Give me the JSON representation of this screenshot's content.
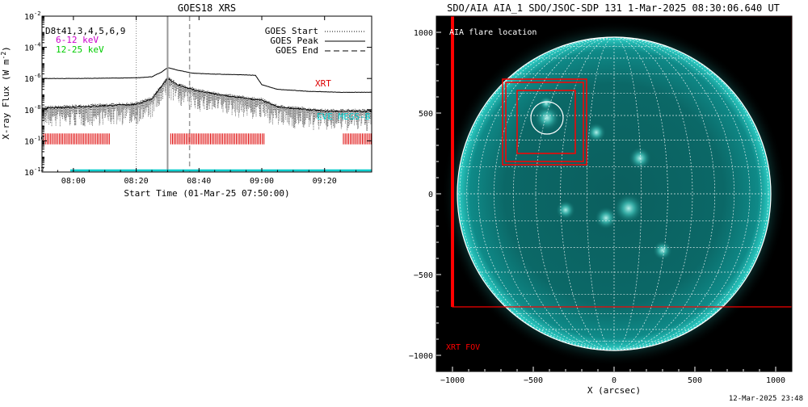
{
  "chart_data": [
    {
      "type": "line",
      "title": "GOES18 XRS",
      "xlabel": "Start Time (01-Mar-25 07:50:00)",
      "ylabel": "X-ray Flux (W m",
      "ylabel_sup": "-2",
      "ylabel_close": ")",
      "y_scale": "log",
      "xlim": [
        "07:50",
        "09:35"
      ],
      "ylim": [
        1e-12,
        0.01
      ],
      "x_ticks": [
        "08:00",
        "08:20",
        "08:40",
        "09:00",
        "09:20"
      ],
      "y_ticks": [
        {
          "exp": -12,
          "label": "10",
          "sup": "-12"
        },
        {
          "exp": -10,
          "label": "10",
          "sup": "-10"
        },
        {
          "exp": -8,
          "label": "10",
          "sup": "-8"
        },
        {
          "exp": -6,
          "label": "10",
          "sup": "-6"
        },
        {
          "exp": -4,
          "label": "10",
          "sup": "-4"
        },
        {
          "exp": -2,
          "label": "10",
          "sup": "-2"
        }
      ],
      "left_legend": [
        {
          "text": "D8t41,3,4,5,6,9",
          "color": "#000000"
        },
        {
          "text": "6-12 keV",
          "color": "#cc00cc"
        },
        {
          "text": "12-25 keV",
          "color": "#00cc00"
        }
      ],
      "right_legend": [
        {
          "text": "GOES Start",
          "style": "dotted"
        },
        {
          "text": "GOES Peak",
          "style": "solid"
        },
        {
          "text": "GOES End",
          "style": "dashed"
        }
      ],
      "event_lines": {
        "start": "08:20",
        "peak": "08:30",
        "end": "08:37"
      },
      "labels": {
        "xrt": "XRT",
        "eve": "EVE MEGS-B"
      },
      "colors": {
        "xrt": "#dd0000",
        "eve": "#00cccc",
        "axis": "#000000"
      },
      "series": [
        {
          "key": "long",
          "x": [
            "07:50",
            "08:00",
            "08:10",
            "08:20",
            "08:25",
            "08:28",
            "08:30",
            "08:33",
            "08:38",
            "08:45",
            "08:55",
            "08:58",
            "09:00",
            "09:05",
            "09:15",
            "09:25",
            "09:35"
          ],
          "y": [
            1e-06,
            1e-06,
            1.05e-06,
            1.1e-06,
            1.3e-06,
            2.5e-06,
            5e-06,
            3.5e-06,
            2.2e-06,
            1.9e-06,
            1.7e-06,
            1.6e-06,
            4e-07,
            2e-07,
            1.5e-07,
            1.3e-07,
            1.3e-07
          ]
        },
        {
          "key": "short",
          "x": [
            "07:50",
            "08:00",
            "08:10",
            "08:20",
            "08:25",
            "08:28",
            "08:30",
            "08:33",
            "08:40",
            "08:50",
            "09:00",
            "09:05",
            "09:20",
            "09:35"
          ],
          "y": [
            1.2e-08,
            1.5e-08,
            1.8e-08,
            2.2e-08,
            5e-08,
            3e-07,
            1e-06,
            4e-07,
            1.5e-07,
            7e-08,
            4e-08,
            1.5e-08,
            8e-09,
            8e-09
          ]
        }
      ],
      "xrt_obs_bands": [
        [
          "07:50",
          "08:12"
        ],
        [
          "08:31",
          "09:01"
        ],
        [
          "09:26",
          "09:35"
        ]
      ],
      "eve_level": 1e-12
    },
    {
      "type": "image",
      "title": "SDO/AIA AIA_1 SDO/JSOC-SDP 131  1-Mar-2025 08:30:06.640 UT",
      "xlabel": "X (arcsec)",
      "xlim": [
        -1100,
        1100
      ],
      "ylim": [
        -1100,
        1100
      ],
      "x_ticks": [
        -1000,
        -500,
        0,
        500,
        1000
      ],
      "y_ticks": [
        -1000,
        -500,
        0,
        500,
        1000
      ],
      "x_tick_labels": [
        "−1000",
        "−500",
        "0",
        "500",
        "1000"
      ],
      "y_tick_labels": [
        "−1000",
        "−500",
        "0",
        "500",
        "1000"
      ],
      "solar_radius": 970,
      "grid_step_deg": 10,
      "labels": {
        "flare": "AIA flare location",
        "fov": "XRT FOV"
      },
      "flare": {
        "x": -415,
        "y": 470,
        "r": 100
      },
      "xrt_fov": {
        "x0": -1000,
        "x1": 1100,
        "y0": -700,
        "y1": 1100
      },
      "boxes": [
        {
          "x0": -690,
          "x1": -170,
          "y0": 180,
          "y1": 710
        },
        {
          "x0": -670,
          "x1": -190,
          "y0": 200,
          "y1": 690
        },
        {
          "x0": -600,
          "x1": -240,
          "y0": 250,
          "y1": 640
        }
      ],
      "colors": {
        "disk": "#0d8a88",
        "limb": "#33d8d0",
        "grid": "#ffffff",
        "fov": "#ff0000",
        "bg": "#000000"
      }
    }
  ],
  "footer": {
    "timestamp": "12-Mar-2025 23:48"
  }
}
